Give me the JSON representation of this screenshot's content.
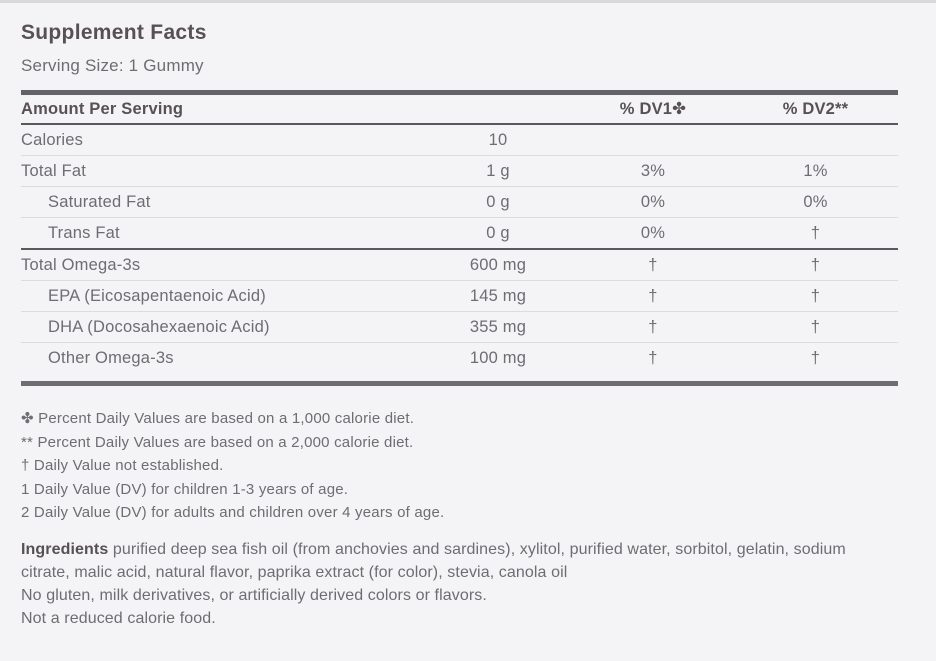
{
  "page": {
    "title": "Supplement Facts",
    "serving_size": "Serving Size: 1 Gummy"
  },
  "colors": {
    "background": "#f4f4f6",
    "heading_text": "#575156",
    "body_text": "#6d6d72",
    "thick_rule": "#626267",
    "thin_rule": "#dcdcde"
  },
  "table": {
    "header": {
      "amount_label": "Amount Per Serving",
      "dv1_label": "% DV1✤",
      "dv2_label": "% DV2**"
    },
    "rows": [
      {
        "name": "Calories",
        "amount": "10",
        "dv1": "",
        "dv2": ""
      },
      {
        "name": "Total Fat",
        "amount": "1 g",
        "dv1": "3%",
        "dv2": "1%"
      },
      {
        "name": "Saturated Fat",
        "amount": "0 g",
        "dv1": "0%",
        "dv2": "0%"
      },
      {
        "name": "Trans Fat",
        "amount": "0 g",
        "dv1": "0%",
        "dv2": "†"
      },
      {
        "name": "Total Omega-3s",
        "amount": "600 mg",
        "dv1": "†",
        "dv2": "†"
      },
      {
        "name": "EPA (Eicosapentaenoic Acid)",
        "amount": "145 mg",
        "dv1": "†",
        "dv2": "†"
      },
      {
        "name": "DHA (Docosahexaenoic Acid)",
        "amount": "355 mg",
        "dv1": "†",
        "dv2": "†"
      },
      {
        "name": "Other Omega-3s",
        "amount": "100 mg",
        "dv1": "†",
        "dv2": "†"
      }
    ]
  },
  "footnotes": [
    "✤ Percent Daily Values are based on a 1,000 calorie diet.",
    "** Percent Daily Values are based on a 2,000 calorie diet.",
    "† Daily Value not established.",
    "1 Daily Value (DV) for children 1-3 years of age.",
    "2 Daily Value (DV) for adults and children over 4 years of age."
  ],
  "ingredients": {
    "label": "Ingredients",
    "text": "purified deep sea fish oil (from anchovies and sardines), xylitol, purified water, sorbitol, gelatin, sodium citrate, malic acid, natural flavor, paprika extract (for color), stevia, canola oil",
    "line2": "No gluten, milk derivatives, or artificially derived colors or flavors.",
    "line3": "Not a reduced calorie food."
  }
}
